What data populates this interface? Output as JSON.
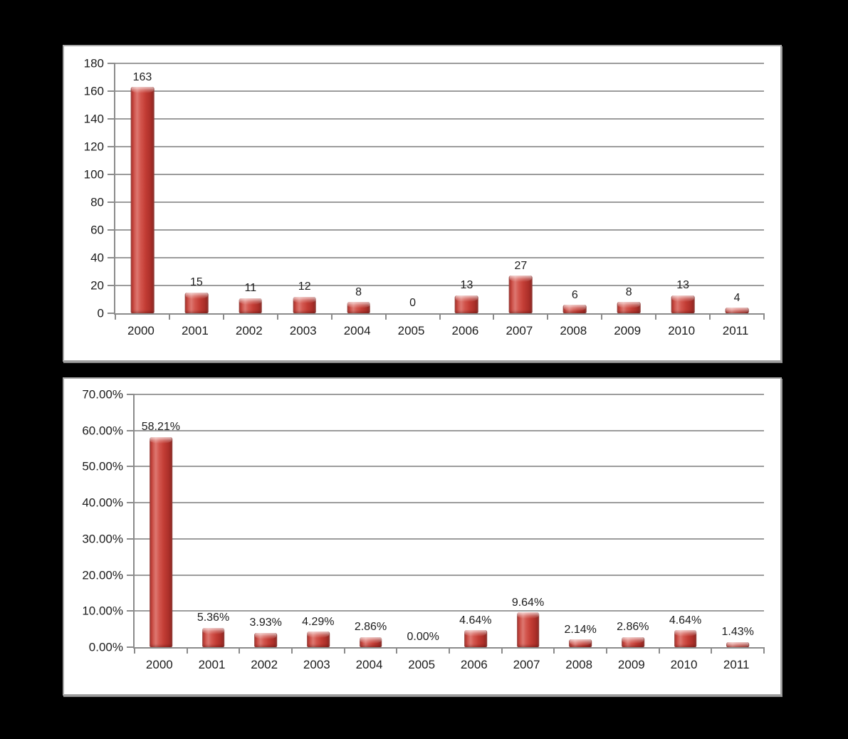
{
  "page": {
    "background": "#000000",
    "title": ""
  },
  "chart_data": [
    {
      "type": "bar",
      "title": "",
      "xlabel": "",
      "ylabel": "",
      "categories": [
        "2000",
        "2001",
        "2002",
        "2003",
        "2004",
        "2005",
        "2006",
        "2007",
        "2008",
        "2009",
        "2010",
        "2011"
      ],
      "values": [
        163,
        15,
        11,
        12,
        8,
        0,
        13,
        27,
        6,
        8,
        13,
        4
      ],
      "data_labels": [
        "163",
        "15",
        "11",
        "12",
        "8",
        "0",
        "13",
        "27",
        "6",
        "8",
        "13",
        "4"
      ],
      "ylim": [
        0,
        180
      ],
      "yticks": [
        0,
        20,
        40,
        60,
        80,
        100,
        120,
        140,
        160,
        180
      ],
      "ytick_labels": [
        "0",
        "20",
        "40",
        "60",
        "80",
        "100",
        "120",
        "140",
        "160",
        "180"
      ],
      "grid": true,
      "legend": "none",
      "colors": {
        "bar": "#c23b34",
        "gridline": "#9c9c9c",
        "axis": "#8b8b8b",
        "text": "#1c1c1c",
        "plot_background": "#ffffff"
      }
    },
    {
      "type": "bar",
      "title": "",
      "xlabel": "",
      "ylabel": "",
      "categories": [
        "2000",
        "2001",
        "2002",
        "2003",
        "2004",
        "2005",
        "2006",
        "2007",
        "2008",
        "2009",
        "2010",
        "2011"
      ],
      "values": [
        58.21,
        5.36,
        3.93,
        4.29,
        2.86,
        0.0,
        4.64,
        9.64,
        2.14,
        2.86,
        4.64,
        1.43
      ],
      "data_labels": [
        "58.21%",
        "5.36%",
        "3.93%",
        "4.29%",
        "2.86%",
        "0.00%",
        "4.64%",
        "9.64%",
        "2.14%",
        "2.86%",
        "4.64%",
        "1.43%"
      ],
      "ylim": [
        0,
        70
      ],
      "yticks": [
        0,
        10,
        20,
        30,
        40,
        50,
        60,
        70
      ],
      "ytick_labels": [
        "0.00%",
        "10.00%",
        "20.00%",
        "30.00%",
        "40.00%",
        "50.00%",
        "60.00%",
        "70.00%"
      ],
      "grid": true,
      "legend": "none",
      "colors": {
        "bar": "#c23b34",
        "gridline": "#9c9c9c",
        "axis": "#8b8b8b",
        "text": "#1c1c1c",
        "plot_background": "#ffffff"
      }
    }
  ]
}
